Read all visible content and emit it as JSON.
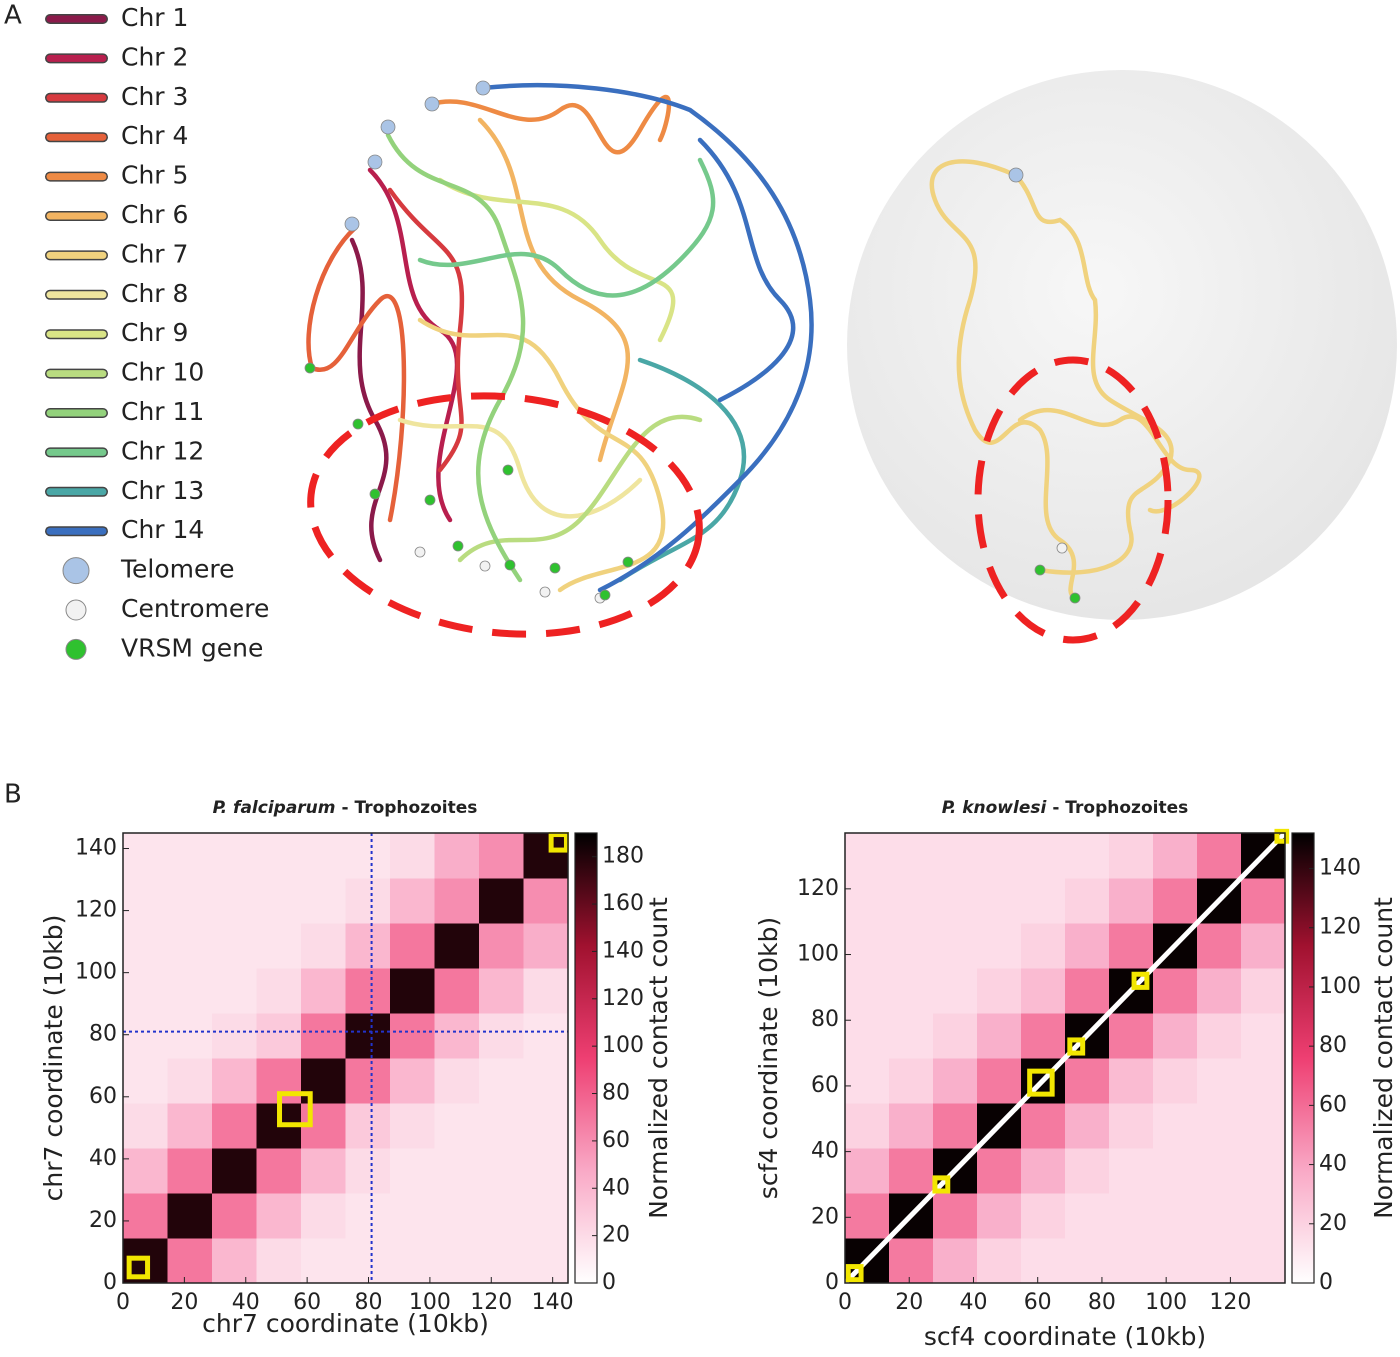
{
  "panel_labels": [
    "A",
    "B"
  ],
  "legend": [
    {
      "label": "Chr 1",
      "color": "#8b1a4a",
      "marker": "line"
    },
    {
      "label": "Chr 2",
      "color": "#b81f4e",
      "marker": "line"
    },
    {
      "label": "Chr 3",
      "color": "#d63a3f",
      "marker": "line"
    },
    {
      "label": "Chr 4",
      "color": "#e5613a",
      "marker": "line"
    },
    {
      "label": "Chr 5",
      "color": "#ee8a44",
      "marker": "line"
    },
    {
      "label": "Chr 6",
      "color": "#f2b462",
      "marker": "line"
    },
    {
      "label": "Chr 7",
      "color": "#f0d27e",
      "marker": "line"
    },
    {
      "label": "Chr 8",
      "color": "#efe59e",
      "marker": "line"
    },
    {
      "label": "Chr 9",
      "color": "#d9e486",
      "marker": "line"
    },
    {
      "label": "Chr 10",
      "color": "#b9dc80",
      "marker": "line"
    },
    {
      "label": "Chr 11",
      "color": "#93d27c",
      "marker": "line"
    },
    {
      "label": "Chr 12",
      "color": "#75c98c",
      "marker": "line"
    },
    {
      "label": "Chr 13",
      "color": "#4aa7a6",
      "marker": "line"
    },
    {
      "label": "Chr 14",
      "color": "#3a6fbf",
      "marker": "line"
    },
    {
      "label": "Telomere",
      "color": "#aac4e6",
      "marker": "circle"
    },
    {
      "label": "Centromere",
      "color": "#f2f2f2",
      "marker": "circle"
    },
    {
      "label": "VRSM gene",
      "color": "#2fc12f",
      "marker": "circle"
    }
  ],
  "chart_data": [
    {
      "type": "heatmap",
      "title": {
        "species": "P. falciparum",
        "rest": "- Trophozoites"
      },
      "xlabel": "chr7 coordinate (10kb)",
      "ylabel": "chr7 coordinate (10kb)",
      "colorbar_label": "Normalized contact count",
      "xlim": [
        0,
        145
      ],
      "ylim": [
        0,
        145
      ],
      "xticks": [
        0,
        20,
        40,
        60,
        80,
        100,
        120,
        140
      ],
      "yticks": [
        0,
        20,
        40,
        60,
        80,
        100,
        120,
        140
      ],
      "clim": [
        0,
        190
      ],
      "cticks": [
        0,
        20,
        40,
        60,
        80,
        100,
        120,
        140,
        160,
        180
      ],
      "colormap": [
        "#ffffff",
        "#f9a9c6",
        "#ee3f72",
        "#a0112f",
        "#000000"
      ],
      "bins": [
        0,
        14.5,
        29,
        43.5,
        58,
        72.5,
        87,
        101.5,
        116,
        130.5,
        145
      ],
      "matrix": [
        [
          180,
          70,
          40,
          20,
          15,
          15,
          15,
          15,
          15,
          15
        ],
        [
          70,
          180,
          70,
          40,
          20,
          15,
          15,
          15,
          15,
          15
        ],
        [
          40,
          70,
          180,
          70,
          40,
          20,
          15,
          15,
          15,
          15
        ],
        [
          20,
          40,
          70,
          180,
          70,
          30,
          20,
          15,
          15,
          15
        ],
        [
          15,
          20,
          40,
          70,
          180,
          70,
          40,
          20,
          15,
          15
        ],
        [
          15,
          15,
          20,
          30,
          70,
          180,
          70,
          40,
          20,
          15
        ],
        [
          15,
          15,
          15,
          20,
          40,
          70,
          180,
          70,
          40,
          20
        ],
        [
          15,
          15,
          15,
          15,
          20,
          40,
          70,
          180,
          60,
          45
        ],
        [
          15,
          15,
          15,
          15,
          15,
          20,
          40,
          60,
          180,
          60
        ],
        [
          15,
          15,
          15,
          15,
          15,
          15,
          20,
          45,
          60,
          180
        ]
      ],
      "highlights": [
        {
          "center": 5,
          "size": 6,
          "color": "#f2e600"
        },
        {
          "center": 56,
          "size": 10,
          "color": "#f2e600"
        },
        {
          "center": 142,
          "size": 5,
          "color": "#f2e600"
        }
      ],
      "guides": [
        {
          "x": 81,
          "y": 81,
          "color": "#2233cc"
        }
      ],
      "diagonal_line": false
    },
    {
      "type": "heatmap",
      "title": {
        "species": "P. knowlesi",
        "rest": "- Trophozoites"
      },
      "xlabel": "scf4 coordinate (10kb)",
      "ylabel": "scf4 coordinate (10kb)",
      "colorbar_label": "Normalized contact count",
      "xlim": [
        0,
        137
      ],
      "ylim": [
        0,
        137
      ],
      "xticks": [
        0,
        20,
        40,
        60,
        80,
        100,
        120
      ],
      "yticks": [
        0,
        20,
        40,
        60,
        80,
        100,
        120
      ],
      "clim": [
        0,
        152
      ],
      "cticks": [
        0,
        20,
        40,
        60,
        80,
        100,
        120,
        140
      ],
      "colormap": [
        "#ffffff",
        "#f9a9c6",
        "#ee3f72",
        "#a0112f",
        "#000000"
      ],
      "bins": [
        0,
        13.7,
        27.4,
        41.1,
        54.8,
        68.5,
        82.2,
        95.9,
        109.6,
        123.3,
        137
      ],
      "matrix": [
        [
          150,
          55,
          35,
          20,
          15,
          15,
          15,
          15,
          15,
          15
        ],
        [
          55,
          150,
          55,
          35,
          20,
          15,
          15,
          15,
          15,
          15
        ],
        [
          35,
          55,
          150,
          55,
          35,
          20,
          15,
          15,
          15,
          15
        ],
        [
          20,
          35,
          55,
          150,
          55,
          35,
          20,
          15,
          15,
          15
        ],
        [
          15,
          20,
          35,
          55,
          150,
          55,
          30,
          20,
          15,
          15
        ],
        [
          15,
          15,
          20,
          35,
          55,
          150,
          55,
          35,
          20,
          15
        ],
        [
          15,
          15,
          15,
          20,
          30,
          55,
          150,
          55,
          35,
          20
        ],
        [
          15,
          15,
          15,
          15,
          20,
          35,
          55,
          150,
          55,
          35
        ],
        [
          15,
          15,
          15,
          15,
          15,
          20,
          35,
          55,
          150,
          55
        ],
        [
          15,
          15,
          15,
          15,
          15,
          15,
          20,
          35,
          55,
          150
        ]
      ],
      "highlights": [
        {
          "center": 3,
          "size": 4,
          "color": "#f2e600"
        },
        {
          "center": 30,
          "size": 4,
          "color": "#f2e600"
        },
        {
          "center": 61,
          "size": 7,
          "color": "#f2e600"
        },
        {
          "center": 72,
          "size": 4,
          "color": "#f2e600"
        },
        {
          "center": 92,
          "size": 4,
          "color": "#f2e600"
        },
        {
          "center": 136,
          "size": 3,
          "color": "#f2e600"
        }
      ],
      "guides": [],
      "diagonal_line": true
    }
  ]
}
